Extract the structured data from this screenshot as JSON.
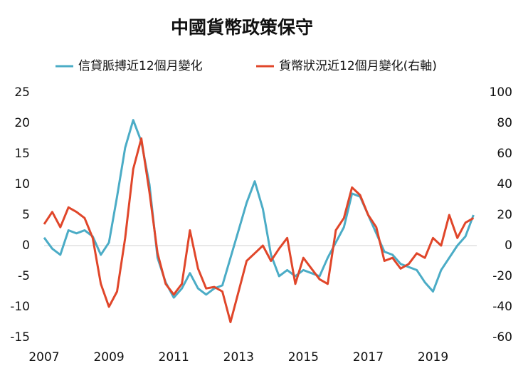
{
  "chart_data": {
    "type": "line",
    "title": "中國貨幣政策保守",
    "x": [
      2007,
      2007.25,
      2007.5,
      2007.75,
      2008,
      2008.25,
      2008.5,
      2008.75,
      2009,
      2009.25,
      2009.5,
      2009.75,
      2010,
      2010.25,
      2010.5,
      2010.75,
      2011,
      2011.25,
      2011.5,
      2011.75,
      2012,
      2012.25,
      2012.5,
      2012.75,
      2013,
      2013.25,
      2013.5,
      2013.75,
      2014,
      2014.25,
      2014.5,
      2014.75,
      2015,
      2015.25,
      2015.5,
      2015.75,
      2016,
      2016.25,
      2016.5,
      2016.75,
      2017,
      2017.25,
      2017.5,
      2017.75,
      2018,
      2018.25,
      2018.5,
      2018.75,
      2019,
      2019.25,
      2019.5,
      2019.75,
      2020,
      2020.25
    ],
    "series": [
      {
        "name": "信貸脈搏近12個月變化",
        "color": "#4bacc6",
        "axis": "y",
        "values": [
          1.3,
          -0.5,
          -1.5,
          2.5,
          2,
          2.5,
          1.5,
          -1.5,
          0.5,
          8,
          16,
          20.5,
          17,
          10,
          -2,
          -6,
          -8.5,
          -7,
          -4.5,
          -7,
          -8,
          -7,
          -6.5,
          -2,
          2.5,
          7,
          10.5,
          6,
          -1.5,
          -5,
          -4,
          -5,
          -4,
          -4.5,
          -5,
          -2,
          0.5,
          3,
          8.5,
          8,
          5,
          2,
          -1,
          -1.5,
          -3,
          -3.5,
          -4,
          -6,
          -7.5,
          -4,
          -2,
          0,
          1.5,
          5
        ]
      },
      {
        "name": "貨幣狀況近12個月變化(右軸)",
        "color": "#e0462a",
        "axis": "y2",
        "values": [
          14,
          22,
          12,
          25,
          22,
          18,
          5,
          -25,
          -40,
          -30,
          5,
          50,
          70,
          35,
          -5,
          -25,
          -32,
          -25,
          10,
          -15,
          -28,
          -27,
          -30,
          -50,
          -30,
          -10,
          -5,
          0,
          -10,
          -2,
          5,
          -25,
          -8,
          -15,
          -22,
          -25,
          10,
          18,
          38,
          33,
          20,
          12,
          -10,
          -8,
          -15,
          -12,
          -5,
          -8,
          5,
          0,
          20,
          5,
          15,
          18
        ]
      }
    ],
    "xlim": [
      2007,
      2020.35
    ],
    "xticks": [
      2007,
      2009,
      2011,
      2013,
      2015,
      2017,
      2019
    ],
    "ylim": [
      -15,
      25
    ],
    "yticks": [
      -15,
      -10,
      -5,
      0,
      5,
      10,
      15,
      20,
      25
    ],
    "y2lim": [
      -60,
      100
    ],
    "y2ticks": [
      -60,
      -40,
      -20,
      0,
      20,
      40,
      60,
      80,
      100
    ]
  }
}
